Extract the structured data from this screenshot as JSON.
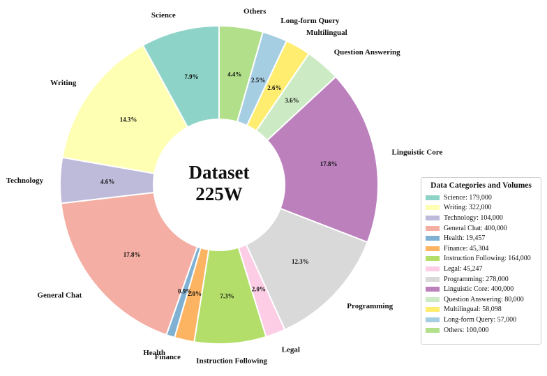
{
  "chart_data": {
    "type": "pie",
    "style": "donut",
    "center_text": [
      "Dataset",
      "225W"
    ],
    "legend": {
      "title": "Data Categories and Volumes",
      "placement": "right"
    },
    "slices": [
      {
        "name": "Science",
        "value": 179000,
        "value_label": "179,000",
        "pct": "7.9%",
        "color": "#8dd3c7"
      },
      {
        "name": "Writing",
        "value": 322000,
        "value_label": "322,000",
        "pct": "14.3%",
        "color": "#ffffb3"
      },
      {
        "name": "Technology",
        "value": 104000,
        "value_label": "104,000",
        "pct": "4.6%",
        "color": "#bebada"
      },
      {
        "name": "General Chat",
        "value": 400000,
        "value_label": "400,000",
        "pct": "17.8%",
        "color": "#f4aea3"
      },
      {
        "name": "Health",
        "value": 19457,
        "value_label": "19,457",
        "pct": "0.9%",
        "color": "#80b1d3"
      },
      {
        "name": "Finance",
        "value": 45304,
        "value_label": "45,304",
        "pct": "2.0%",
        "color": "#fdb462"
      },
      {
        "name": "Instruction Following",
        "value": 164000,
        "value_label": "164,000",
        "pct": "7.3%",
        "color": "#b3de69"
      },
      {
        "name": "Legal",
        "value": 45247,
        "value_label": "45,247",
        "pct": "2.0%",
        "color": "#fccde5"
      },
      {
        "name": "Programming",
        "value": 278000,
        "value_label": "278,000",
        "pct": "12.3%",
        "color": "#d9d9d9"
      },
      {
        "name": "Linguistic Core",
        "value": 400000,
        "value_label": "400,000",
        "pct": "17.8%",
        "color": "#bc80bd"
      },
      {
        "name": "Question Answering",
        "value": 80000,
        "value_label": "80,000",
        "pct": "3.6%",
        "color": "#ccebc5"
      },
      {
        "name": "Multilingual",
        "value": 58098,
        "value_label": "58,098",
        "pct": "2.6%",
        "color": "#ffed6f"
      },
      {
        "name": "Long-form Query",
        "value": 57000,
        "value_label": "57,000",
        "pct": "2.5%",
        "color": "#a6cee3"
      },
      {
        "name": "Others",
        "value": 100000,
        "value_label": "100,000",
        "pct": "4.4%",
        "color": "#b2df8a"
      }
    ]
  }
}
